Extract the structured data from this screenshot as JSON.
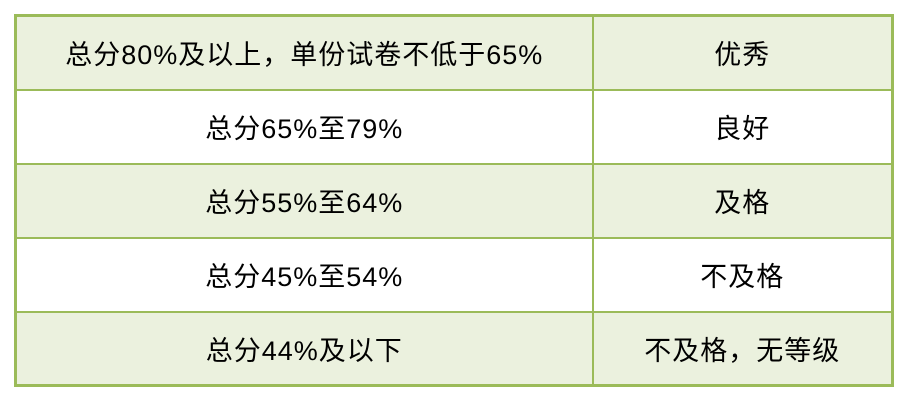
{
  "table": {
    "name": "grade-criteria-table",
    "border_color": "#9bbb59",
    "row_fill_green": "#ebf1de",
    "row_fill_white": "#ffffff",
    "text_color": "#000000",
    "rows": [
      {
        "criteria": "总分80%及以上，单份试卷不低于65%",
        "grade": "优秀"
      },
      {
        "criteria": "总分65%至79%",
        "grade": "良好"
      },
      {
        "criteria": "总分55%至64%",
        "grade": "及格"
      },
      {
        "criteria": "总分45%至54%",
        "grade": "不及格"
      },
      {
        "criteria": "总分44%及以下",
        "grade": "不及格，无等级"
      }
    ]
  }
}
